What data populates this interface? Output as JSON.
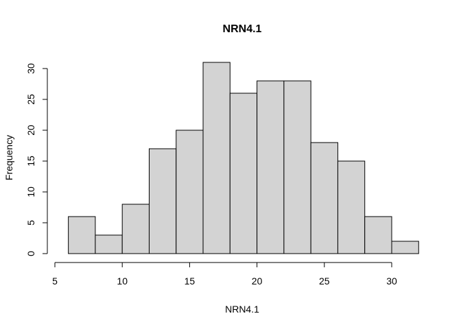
{
  "chart_data": {
    "type": "bar",
    "title": "NRN4.1",
    "xlabel": "NRN4.1",
    "ylabel": "Frequency",
    "bins": [
      {
        "from": 6,
        "to": 8,
        "count": 6
      },
      {
        "from": 8,
        "to": 10,
        "count": 3
      },
      {
        "from": 10,
        "to": 12,
        "count": 8
      },
      {
        "from": 12,
        "to": 14,
        "count": 17
      },
      {
        "from": 14,
        "to": 16,
        "count": 20
      },
      {
        "from": 16,
        "to": 18,
        "count": 31
      },
      {
        "from": 18,
        "to": 20,
        "count": 26
      },
      {
        "from": 20,
        "to": 22,
        "count": 28
      },
      {
        "from": 22,
        "to": 24,
        "count": 28
      },
      {
        "from": 24,
        "to": 26,
        "count": 18
      },
      {
        "from": 26,
        "to": 28,
        "count": 15
      },
      {
        "from": 28,
        "to": 30,
        "count": 6
      },
      {
        "from": 30,
        "to": 32,
        "count": 2
      }
    ],
    "xlim": [
      5,
      30
    ],
    "ylim": [
      0,
      30
    ],
    "x_ticks": [
      5,
      10,
      15,
      20,
      25,
      30
    ],
    "y_ticks": [
      0,
      5,
      10,
      15,
      20,
      25,
      30
    ],
    "bar_color": "#d3d3d3",
    "grid": false,
    "legend": "none"
  }
}
